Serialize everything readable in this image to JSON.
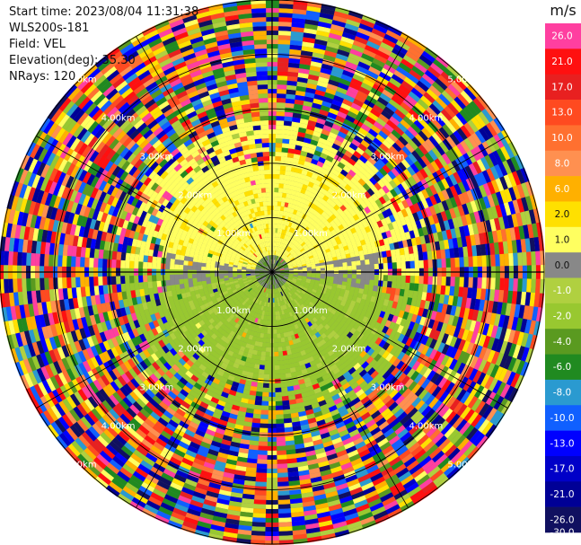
{
  "header": {
    "start_time": "Start time: 2023/08/04 11:31:38",
    "instrument": "WLS200s-181",
    "field": "Field: VEL",
    "elevation": "Elevation(deg): 35.30",
    "nrays": "NRays: 120"
  },
  "chart_data": {
    "type": "heatmap",
    "projection": "polar PPI",
    "field": "VEL",
    "unit": "m/s",
    "nrays": 120,
    "range_rings_km": [
      1.0,
      2.0,
      3.0,
      4.0,
      5.0
    ],
    "ring_label_text": [
      "1.00km",
      "2.00km",
      "3.00km",
      "4.00km",
      "5.00km"
    ],
    "max_range_km": 5.0,
    "colorbar": {
      "ticks": [
        "26.0",
        "21.0",
        "17.0",
        "13.0",
        "10.0",
        "8.0",
        "6.0",
        "2.0",
        "1.0",
        "0.0",
        "-1.0",
        "-2.0",
        "-4.0",
        "-6.0",
        "-8.0",
        "-10.0",
        "-13.0",
        "-17.0",
        "-21.0",
        "-26.0",
        "-30.0"
      ],
      "colors": [
        "#ff3fa0",
        "#ff1010",
        "#e82020",
        "#ff4a20",
        "#ff7030",
        "#ff9050",
        "#ffb000",
        "#ffe000",
        "#ffff60",
        "#888888",
        "#b0d040",
        "#98c830",
        "#5a9a20",
        "#208a20",
        "#2a9ad0",
        "#1060ff",
        "#0000ff",
        "#0000c8",
        "#000096",
        "#101060"
      ],
      "dark_text_index": [
        7,
        8,
        9
      ]
    },
    "wind_pattern": {
      "yellow_toward": "north",
      "green_toward": "south",
      "coherent_range_km": 2.2
    }
  }
}
